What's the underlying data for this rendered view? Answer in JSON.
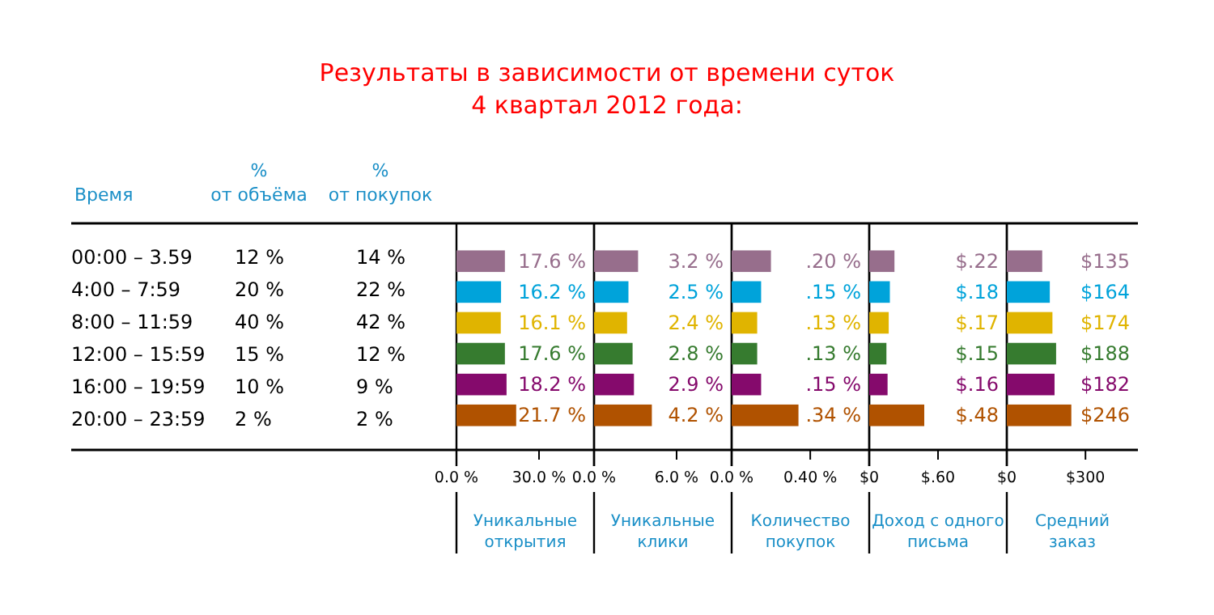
{
  "chart_data": [
    {
      "type": "other",
      "title": "Результаты в зависимости от времени суток",
      "subtitle": "4 квартал 2012 года:",
      "xlabel": "Время",
      "categories": [
        "00:00 – 3.59",
        "4:00 – 7:59",
        "8:00 – 11:59",
        "12:00 – 15:59",
        "16:00 – 19:59",
        "20:00 – 23:59"
      ],
      "series": [
        {
          "name": "%\nот объёма",
          "values": [
            12,
            20,
            40,
            15,
            10,
            2
          ],
          "value_labels": [
            "12 %",
            "20 %",
            "40 %",
            "15 %",
            "10 %",
            "2 %"
          ]
        },
        {
          "name": "%\nот покупок",
          "values": [
            14,
            22,
            42,
            12,
            9,
            2
          ],
          "value_labels": [
            "14 %",
            "22 %",
            "42 %",
            "12 %",
            "9 %",
            "2 %"
          ]
        }
      ]
    },
    {
      "type": "bar",
      "orientation": "horizontal",
      "xlabel": "Уникальные\nоткрытия",
      "categories": [
        null,
        null,
        null,
        null,
        null,
        null
      ],
      "values": [
        17.6,
        16.2,
        16.1,
        17.6,
        18.2,
        21.7
      ],
      "value_labels": [
        "17.6 %",
        "16.2 %",
        "16.1 %",
        "17.6 %",
        "18.2 %",
        "21.7 %"
      ],
      "colors": [
        "#976e8c",
        "#00a3da",
        "#e0b400",
        "#367b2f",
        "#850a6c",
        "#b05200"
      ],
      "xlim": [
        0,
        50
      ],
      "xticks": [
        {
          "value": 0,
          "label": "0.0 %"
        },
        {
          "value": 30,
          "label": "30.0 %"
        }
      ],
      "tick_labels": "x"
    },
    {
      "type": "bar",
      "orientation": "horizontal",
      "xlabel": "Уникальные\nклики",
      "categories": [
        null,
        null,
        null,
        null,
        null,
        null
      ],
      "values": [
        3.2,
        2.5,
        2.4,
        2.8,
        2.9,
        4.2
      ],
      "value_labels": [
        "3.2 %",
        "2.5 %",
        "2.4 %",
        "2.8 %",
        "2.9 %",
        "4.2 %"
      ],
      "colors": [
        "#976e8c",
        "#00a3da",
        "#e0b400",
        "#367b2f",
        "#850a6c",
        "#b05200"
      ],
      "xlim": [
        0,
        10
      ],
      "xticks": [
        {
          "value": 0,
          "label": "0.0 %"
        },
        {
          "value": 6,
          "label": "6.0 %"
        }
      ],
      "tick_labels": "x"
    },
    {
      "type": "bar",
      "orientation": "horizontal",
      "xlabel": "Количество\nпокупок",
      "categories": [
        null,
        null,
        null,
        null,
        null,
        null
      ],
      "values": [
        0.2,
        0.15,
        0.13,
        0.13,
        0.15,
        0.34
      ],
      "value_labels": [
        ".20 %",
        ".15 %",
        ".13 %",
        ".13 %",
        ".15 %",
        ".34 %"
      ],
      "colors": [
        "#976e8c",
        "#00a3da",
        "#e0b400",
        "#367b2f",
        "#850a6c",
        "#b05200"
      ],
      "xlim": [
        0,
        0.7
      ],
      "xticks": [
        {
          "value": 0,
          "label": "0.0 %"
        },
        {
          "value": 0.4,
          "label": "0.40 %"
        }
      ],
      "tick_labels": "x"
    },
    {
      "type": "bar",
      "orientation": "horizontal",
      "xlabel": "Доход с одного\nписьма",
      "categories": [
        null,
        null,
        null,
        null,
        null,
        null
      ],
      "values": [
        0.22,
        0.18,
        0.17,
        0.15,
        0.16,
        0.48
      ],
      "value_labels": [
        "$.22",
        "$.18",
        "$.17",
        "$.15",
        "$.16",
        "$.48"
      ],
      "colors": [
        "#976e8c",
        "#00a3da",
        "#e0b400",
        "#367b2f",
        "#850a6c",
        "#b05200"
      ],
      "xlim": [
        0,
        1.2
      ],
      "xticks": [
        {
          "value": 0,
          "label": "$0"
        },
        {
          "value": 0.6,
          "label": "$.60"
        }
      ],
      "tick_labels": "x"
    },
    {
      "type": "bar",
      "orientation": "horizontal",
      "xlabel": "Средний\nзаказ",
      "categories": [
        null,
        null,
        null,
        null,
        null,
        null
      ],
      "values": [
        135,
        164,
        174,
        188,
        182,
        246
      ],
      "value_labels": [
        "$135",
        "$164",
        "$174",
        "$188",
        "$182",
        "$246"
      ],
      "colors": [
        "#976e8c",
        "#00a3da",
        "#e0b400",
        "#367b2f",
        "#850a6c",
        "#b05200"
      ],
      "xlim": [
        0,
        500
      ],
      "xticks": [
        {
          "value": 0,
          "label": "$0"
        },
        {
          "value": 300,
          "label": "$300"
        }
      ],
      "tick_labels": "x"
    }
  ]
}
